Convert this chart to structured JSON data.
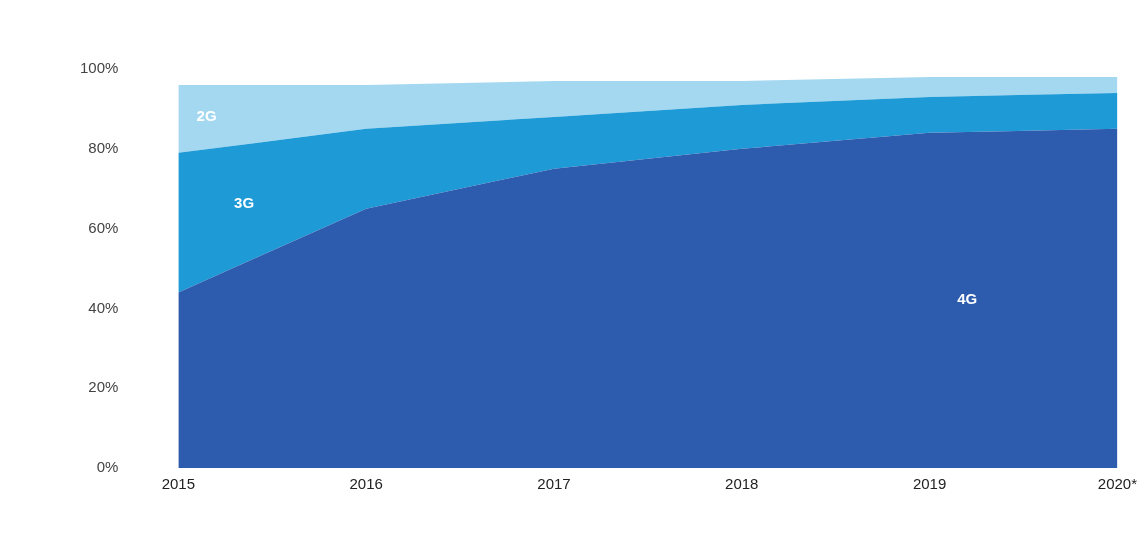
{
  "chart_data": {
    "type": "area",
    "stacked": true,
    "grid": false,
    "legend": false,
    "categories": [
      "2015",
      "2016",
      "2017",
      "2018",
      "2019",
      "2020*"
    ],
    "series": [
      {
        "name": "4G",
        "color": "#2d5caf",
        "values": [
          44,
          65,
          75,
          80,
          84,
          85
        ]
      },
      {
        "name": "3G",
        "color": "#1e9ad6",
        "values": [
          35,
          20,
          13,
          11,
          9,
          9
        ]
      },
      {
        "name": "2G",
        "color": "#a3d8f0",
        "values": [
          17,
          11,
          9,
          6,
          5,
          4
        ]
      }
    ],
    "ylim": [
      0,
      100
    ],
    "yticks": [
      {
        "value": 0,
        "label": "0%"
      },
      {
        "value": 20,
        "label": "20%"
      },
      {
        "value": 40,
        "label": "40%"
      },
      {
        "value": 60,
        "label": "60%"
      },
      {
        "value": 80,
        "label": "80%"
      },
      {
        "value": 100,
        "label": "100%"
      }
    ]
  }
}
